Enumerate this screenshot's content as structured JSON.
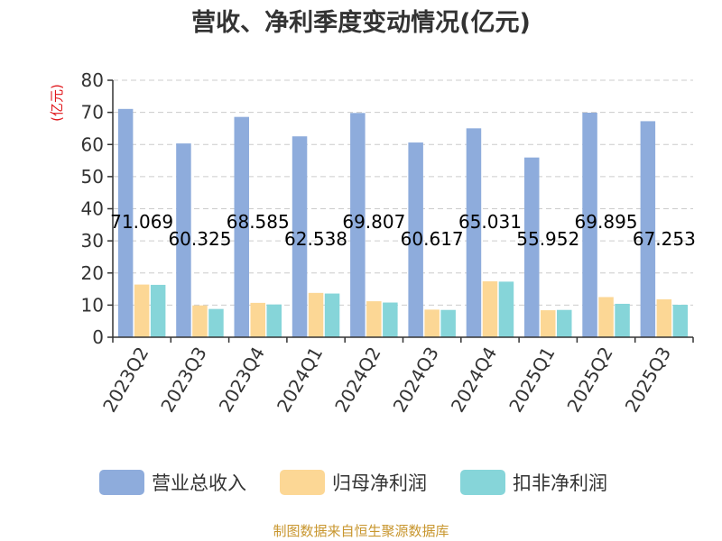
{
  "chart_data": {
    "type": "bar",
    "title": "营收、净利季度变动情况(亿元)",
    "ylabel": "(亿元)",
    "xlabel": "",
    "ylim": [
      0,
      80
    ],
    "yticks": [
      "0",
      "10",
      "20",
      "30",
      "40",
      "50",
      "60",
      "70",
      "80"
    ],
    "grid": true,
    "legend_position": "bottom",
    "categories": [
      "2023Q2",
      "2023Q3",
      "2023Q4",
      "2024Q1",
      "2024Q2",
      "2024Q3",
      "2024Q4",
      "2025Q1",
      "2025Q2",
      "2025Q3"
    ],
    "series": [
      {
        "name": "营业总收入",
        "color": "#8eacdc",
        "values": [
          71.069,
          60.325,
          68.585,
          62.538,
          69.807,
          60.617,
          65.031,
          55.952,
          69.895,
          67.253
        ],
        "data_labels": [
          "71.069",
          "60.325",
          "68.585",
          "62.538",
          "69.807",
          "60.617",
          "65.031",
          "55.952",
          "69.895",
          "67.253"
        ]
      },
      {
        "name": "归母净利润",
        "color": "#fcd795",
        "values": [
          16.4,
          9.9,
          10.7,
          13.8,
          11.2,
          8.6,
          17.4,
          8.4,
          12.5,
          11.8
        ]
      },
      {
        "name": "扣非净利润",
        "color": "#86d5d9",
        "values": [
          16.3,
          8.8,
          10.2,
          13.6,
          10.8,
          8.5,
          17.3,
          8.5,
          10.4,
          10.1
        ]
      }
    ],
    "source": "制图数据来自恒生聚源数据库"
  }
}
